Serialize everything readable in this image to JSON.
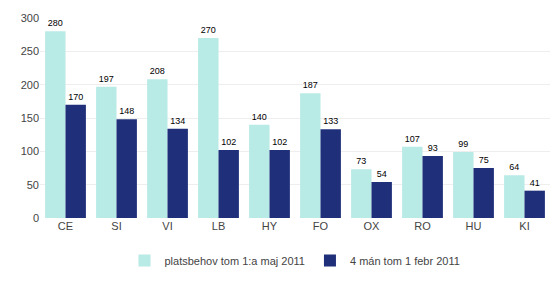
{
  "chart_data": {
    "type": "bar",
    "categories": [
      "CE",
      "SI",
      "VI",
      "LB",
      "HY",
      "FO",
      "OX",
      "RO",
      "HU",
      "KI"
    ],
    "series": [
      {
        "name": "platsbehov tom 1:a maj 2011",
        "color": "#b8eae6",
        "values": [
          280,
          197,
          208,
          270,
          140,
          187,
          73,
          107,
          99,
          64
        ]
      },
      {
        "name": "4 mán tom 1 febr 2011",
        "color": "#1f2f7a",
        "values": [
          170,
          148,
          134,
          102,
          102,
          133,
          54,
          93,
          75,
          41
        ]
      }
    ],
    "ylim": [
      0,
      300
    ],
    "yticks": [
      0,
      50,
      100,
      150,
      200,
      250,
      300
    ],
    "grid": true,
    "data_labels": true,
    "legend": "bottom"
  }
}
